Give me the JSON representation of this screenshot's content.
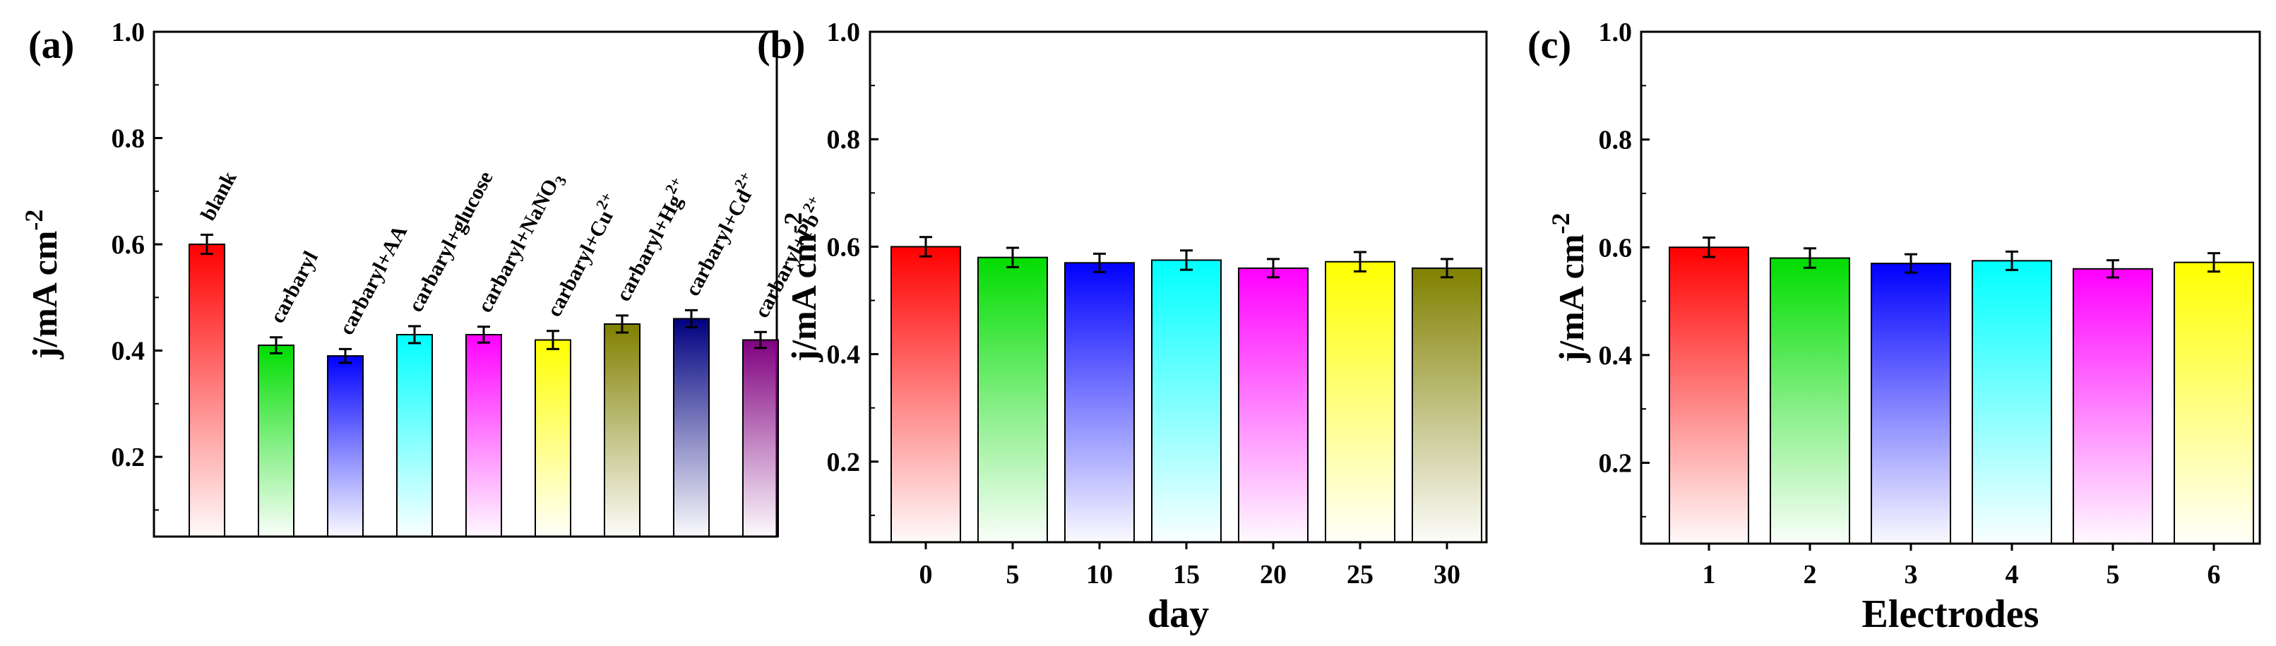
{
  "chart_data": [
    {
      "type": "bar",
      "panel_label": "(a)",
      "ylabel": "j/mA cm",
      "ylabel_sup": "-2",
      "xlabel": "",
      "ylim": [
        0.05,
        1.0
      ],
      "yticks": [
        "0.2",
        "0.4",
        "0.6",
        "0.8",
        "1.0"
      ],
      "categories": [
        "blank",
        "carbaryl",
        "carbaryl+AA",
        "carbaryl+glucose",
        "carbaryl+NaNO3",
        "carbaryl+Cu2+",
        "carbaryl+Hg2+",
        "carbaryl+Cd2+",
        "carbaryl+Pb2+"
      ],
      "bar_labels": [
        {
          "text": "blank",
          "sub": "",
          "sup": ""
        },
        {
          "text": "carbaryl",
          "sub": "",
          "sup": ""
        },
        {
          "text": "carbaryl+AA",
          "sub": "",
          "sup": ""
        },
        {
          "text": "carbaryl+glucose",
          "sub": "",
          "sup": ""
        },
        {
          "text": "carbaryl+NaNO",
          "sub": "3",
          "sup": ""
        },
        {
          "text": "carbaryl+Cu",
          "sub": "",
          "sup": "2+"
        },
        {
          "text": "carbaryl+Hg",
          "sub": "",
          "sup": "2+"
        },
        {
          "text": "carbaryl+Cd",
          "sub": "",
          "sup": "2+"
        },
        {
          "text": "carbaryl+Pb",
          "sub": "",
          "sup": "2+"
        }
      ],
      "values": [
        0.6,
        0.41,
        0.39,
        0.43,
        0.43,
        0.42,
        0.45,
        0.46,
        0.42
      ],
      "errors": [
        0.018,
        0.015,
        0.013,
        0.016,
        0.015,
        0.017,
        0.016,
        0.016,
        0.015
      ],
      "colors": [
        "#ff0000",
        "#00dd00",
        "#0000ff",
        "#00ffff",
        "#ff00ff",
        "#ffff00",
        "#808000",
        "#000080",
        "#800080"
      ]
    },
    {
      "type": "bar",
      "panel_label": "(b)",
      "ylabel": "j/mA cm",
      "ylabel_sup": "-2",
      "xlabel": "day",
      "ylim": [
        0.05,
        1.0
      ],
      "yticks": [
        "0.2",
        "0.4",
        "0.6",
        "0.8",
        "1.0"
      ],
      "categories": [
        "0",
        "5",
        "10",
        "15",
        "20",
        "25",
        "30"
      ],
      "values": [
        0.6,
        0.58,
        0.57,
        0.575,
        0.56,
        0.572,
        0.56
      ],
      "errors": [
        0.018,
        0.018,
        0.017,
        0.018,
        0.017,
        0.018,
        0.017
      ],
      "colors": [
        "#ff0000",
        "#00dd00",
        "#0000ff",
        "#00ffff",
        "#ff00ff",
        "#ffff00",
        "#808000"
      ]
    },
    {
      "type": "bar",
      "panel_label": "(c)",
      "ylabel": "j/mA cm",
      "ylabel_sup": "-2",
      "xlabel": "Electrodes",
      "ylim": [
        0.05,
        1.0
      ],
      "yticks": [
        "0.2",
        "0.4",
        "0.6",
        "0.8",
        "1.0"
      ],
      "categories": [
        "1",
        "2",
        "3",
        "4",
        "5",
        "6"
      ],
      "values": [
        0.6,
        0.58,
        0.57,
        0.575,
        0.56,
        0.572
      ],
      "errors": [
        0.018,
        0.018,
        0.017,
        0.017,
        0.016,
        0.017
      ],
      "colors": [
        "#ff0000",
        "#00dd00",
        "#0000ff",
        "#00ffff",
        "#ff00ff",
        "#ffff00"
      ]
    }
  ]
}
